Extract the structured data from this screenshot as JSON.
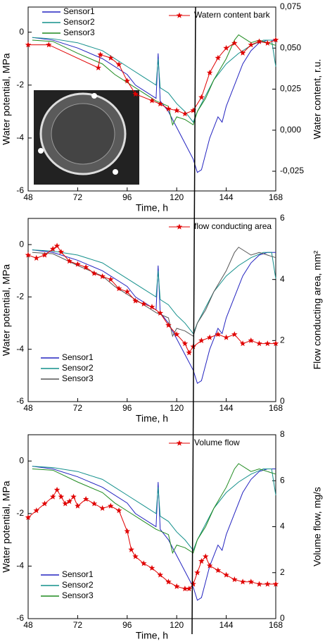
{
  "chart_data": [
    {
      "type": "line",
      "xlabel": "Time, h",
      "ylabel": "Water potential, MPa",
      "y2label": "Water content, r.u.",
      "xlim": [
        48,
        168
      ],
      "xticks": [
        48,
        72,
        96,
        120,
        144,
        168
      ],
      "ylim": [
        -6,
        0.95
      ],
      "yticks": [
        -6,
        -4,
        -2,
        0
      ],
      "y2lim": [
        -0.037,
        0.075
      ],
      "y2ticks": [
        {
          "value": -0.025,
          "label": "-0,025"
        },
        {
          "value": 0,
          "label": "0,000"
        },
        {
          "value": 0.025,
          "label": "0,025"
        },
        {
          "value": 0.05,
          "label": "0,050"
        },
        {
          "value": 0.075,
          "label": "0,075"
        }
      ],
      "legend": "upper left",
      "series": [
        {
          "name": "Sensor1",
          "color": "#2323c0",
          "x": [
            50,
            60,
            72,
            84,
            96,
            100,
            108,
            110,
            111,
            112,
            116,
            120,
            124,
            128,
            130,
            132,
            134,
            136,
            140,
            142,
            144,
            148,
            152,
            156,
            160,
            164,
            168
          ],
          "values": [
            -0.2,
            -0.3,
            -0.6,
            -1.0,
            -1.6,
            -2.0,
            -2.4,
            -2.5,
            -0.8,
            -2.6,
            -3.0,
            -3.6,
            -4.2,
            -4.8,
            -5.3,
            -5.2,
            -4.6,
            -4.0,
            -3.2,
            -3.4,
            -2.8,
            -2.0,
            -1.2,
            -0.7,
            -0.4,
            -0.3,
            -0.3
          ]
        },
        {
          "name": "Sensor2",
          "color": "#14908c",
          "x": [
            50,
            60,
            72,
            84,
            90,
            96,
            104,
            110,
            111,
            112,
            116,
            120,
            124,
            128,
            130,
            134,
            138,
            144,
            150,
            156,
            162,
            166,
            168
          ],
          "values": [
            -0.2,
            -0.25,
            -0.4,
            -0.7,
            -1.0,
            -1.3,
            -1.7,
            -2.0,
            -1.0,
            -2.1,
            -2.3,
            -2.7,
            -3.0,
            -3.4,
            -3.0,
            -2.4,
            -1.8,
            -1.2,
            -0.8,
            -0.5,
            -0.3,
            -0.3,
            -1.3
          ]
        },
        {
          "name": "Sensor3",
          "color": "#1f8a1f",
          "x": [
            50,
            60,
            72,
            84,
            90,
            96,
            104,
            110,
            116,
            118,
            120,
            124,
            128,
            130,
            134,
            138,
            144,
            148,
            150,
            156,
            160,
            164,
            168
          ],
          "values": [
            -0.3,
            -0.35,
            -0.8,
            -1.2,
            -1.6,
            -1.9,
            -2.3,
            -2.6,
            -2.8,
            -3.5,
            -3.2,
            -3.3,
            -3.5,
            -3.0,
            -2.5,
            -1.8,
            -1.0,
            -0.3,
            -0.1,
            -0.4,
            -0.3,
            -0.4,
            -0.5
          ]
        },
        {
          "name": "Watern content bark",
          "color": "#e00000",
          "axis": "y2",
          "marker": "star",
          "x": [
            48,
            58,
            82,
            83,
            88,
            92,
            96,
            100,
            108,
            112,
            116,
            120,
            124,
            128,
            132,
            136,
            140,
            144,
            148,
            152,
            156,
            160,
            164,
            168
          ],
          "values": [
            0.052,
            0.052,
            0.038,
            0.046,
            0.044,
            0.04,
            0.03,
            0.022,
            0.018,
            0.016,
            0.013,
            0.012,
            0.01,
            0.012,
            0.02,
            0.035,
            0.044,
            0.05,
            0.053,
            0.047,
            0.052,
            0.054,
            0.053,
            0.055
          ]
        }
      ]
    },
    {
      "type": "line",
      "xlabel": "Time, h",
      "ylabel": "Water potential, MPa",
      "y2label": "Flow conducting area, mm²",
      "xlim": [
        48,
        168
      ],
      "xticks": [
        48,
        72,
        96,
        120,
        144,
        168
      ],
      "ylim": [
        -6,
        1
      ],
      "yticks": [
        -6,
        -4,
        -2,
        0
      ],
      "y2lim": [
        0,
        6
      ],
      "y2ticks": [
        0,
        2,
        4,
        6
      ],
      "legend": "lower left",
      "series": [
        {
          "name": "Sensor1",
          "color": "#2323c0",
          "x": [
            50,
            60,
            72,
            84,
            96,
            100,
            108,
            110,
            111,
            112,
            116,
            120,
            124,
            128,
            130,
            132,
            134,
            136,
            140,
            142,
            144,
            148,
            152,
            156,
            160,
            164,
            168
          ],
          "values": [
            -0.2,
            -0.3,
            -0.6,
            -1.0,
            -1.6,
            -2.0,
            -2.4,
            -2.5,
            -0.8,
            -2.6,
            -3.0,
            -3.6,
            -4.2,
            -4.8,
            -5.3,
            -5.2,
            -4.6,
            -4.0,
            -3.2,
            -3.4,
            -2.8,
            -2.0,
            -1.2,
            -0.7,
            -0.4,
            -0.3,
            -0.3
          ]
        },
        {
          "name": "Sensor2",
          "color": "#14908c",
          "x": [
            50,
            60,
            72,
            84,
            90,
            96,
            104,
            110,
            111,
            112,
            116,
            120,
            124,
            128,
            130,
            134,
            138,
            144,
            150,
            156,
            162,
            166,
            168
          ],
          "values": [
            -0.2,
            -0.25,
            -0.4,
            -0.7,
            -1.0,
            -1.3,
            -1.7,
            -2.0,
            -1.0,
            -2.1,
            -2.3,
            -2.7,
            -3.0,
            -3.4,
            -3.0,
            -2.4,
            -1.8,
            -1.2,
            -0.8,
            -0.5,
            -0.3,
            -0.3,
            -1.3
          ]
        },
        {
          "name": "Sensor3",
          "color": "#555555",
          "x": [
            50,
            60,
            72,
            84,
            90,
            96,
            104,
            110,
            116,
            118,
            120,
            124,
            128,
            130,
            134,
            138,
            144,
            148,
            150,
            156,
            160,
            164,
            168
          ],
          "values": [
            -0.3,
            -0.35,
            -0.8,
            -1.2,
            -1.6,
            -1.9,
            -2.3,
            -2.6,
            -2.8,
            -3.5,
            -3.2,
            -3.3,
            -3.5,
            -3.0,
            -2.5,
            -1.8,
            -1.0,
            -0.3,
            -0.1,
            -0.4,
            -0.3,
            -0.4,
            -0.5
          ]
        },
        {
          "name": "flow conducting area",
          "color": "#e00000",
          "axis": "y2",
          "marker": "star",
          "x": [
            48,
            52,
            56,
            60,
            62,
            64,
            68,
            72,
            76,
            80,
            84,
            88,
            92,
            96,
            100,
            104,
            108,
            112,
            116,
            120,
            124,
            126,
            128,
            132,
            136,
            140,
            144,
            148,
            152,
            156,
            160,
            164,
            168
          ],
          "values": [
            4.8,
            4.7,
            4.8,
            5.0,
            5.1,
            4.9,
            4.6,
            4.5,
            4.4,
            4.2,
            4.1,
            4.0,
            3.7,
            3.6,
            3.3,
            3.2,
            3.1,
            2.9,
            2.5,
            2.2,
            1.9,
            1.6,
            1.8,
            2.0,
            2.1,
            2.2,
            2.1,
            2.2,
            1.9,
            2.0,
            1.9,
            1.9,
            1.9
          ]
        }
      ]
    },
    {
      "type": "line",
      "xlabel": "Time, h",
      "ylabel": "Water potential, MPa",
      "y2label": "Volume flow, mg/s",
      "xlim": [
        48,
        168
      ],
      "xticks": [
        48,
        72,
        96,
        120,
        144,
        168
      ],
      "ylim": [
        -6,
        1
      ],
      "yticks": [
        -6,
        -4,
        -2,
        0
      ],
      "y2lim": [
        0,
        8
      ],
      "y2ticks": [
        0,
        2,
        4,
        6,
        8
      ],
      "legend": "lower left",
      "series": [
        {
          "name": "Sensor1",
          "color": "#2323c0",
          "x": [
            50,
            60,
            72,
            84,
            96,
            100,
            108,
            110,
            111,
            112,
            116,
            120,
            124,
            128,
            130,
            132,
            134,
            136,
            140,
            142,
            144,
            148,
            152,
            156,
            160,
            164,
            168
          ],
          "values": [
            -0.2,
            -0.3,
            -0.6,
            -1.0,
            -1.6,
            -2.0,
            -2.4,
            -2.5,
            -0.8,
            -2.6,
            -3.0,
            -3.6,
            -4.2,
            -4.8,
            -5.3,
            -5.2,
            -4.6,
            -4.0,
            -3.2,
            -3.4,
            -2.8,
            -2.0,
            -1.2,
            -0.7,
            -0.4,
            -0.3,
            -0.3
          ]
        },
        {
          "name": "Sensor2",
          "color": "#14908c",
          "x": [
            50,
            60,
            72,
            84,
            90,
            96,
            104,
            110,
            111,
            112,
            116,
            120,
            124,
            128,
            130,
            134,
            138,
            144,
            150,
            156,
            162,
            166,
            168
          ],
          "values": [
            -0.2,
            -0.25,
            -0.4,
            -0.7,
            -1.0,
            -1.3,
            -1.7,
            -2.0,
            -1.0,
            -2.1,
            -2.3,
            -2.7,
            -3.0,
            -3.4,
            -3.0,
            -2.4,
            -1.8,
            -1.2,
            -0.8,
            -0.5,
            -0.3,
            -0.3,
            -1.3
          ]
        },
        {
          "name": "Sensor3",
          "color": "#1f8a1f",
          "x": [
            50,
            60,
            72,
            84,
            90,
            96,
            104,
            110,
            116,
            118,
            120,
            124,
            128,
            130,
            134,
            138,
            144,
            148,
            150,
            156,
            160,
            164,
            168
          ],
          "values": [
            -0.3,
            -0.35,
            -0.8,
            -1.2,
            -1.6,
            -1.9,
            -2.3,
            -2.6,
            -2.8,
            -3.5,
            -3.2,
            -3.3,
            -3.5,
            -3.0,
            -2.5,
            -1.8,
            -1.0,
            -0.3,
            -0.1,
            -0.4,
            -0.3,
            -0.4,
            -0.5
          ]
        },
        {
          "name": "Volume flow",
          "color": "#e00000",
          "axis": "y2",
          "marker": "star",
          "x": [
            48,
            52,
            56,
            60,
            62,
            64,
            66,
            68,
            70,
            72,
            76,
            80,
            84,
            88,
            92,
            96,
            98,
            100,
            104,
            108,
            112,
            116,
            120,
            124,
            126,
            128,
            130,
            132,
            134,
            136,
            140,
            144,
            148,
            152,
            156,
            160,
            164,
            168
          ],
          "values": [
            4.4,
            4.7,
            5.0,
            5.3,
            5.6,
            5.3,
            5.0,
            5.1,
            5.3,
            4.9,
            5.2,
            5.0,
            4.8,
            4.9,
            4.7,
            3.8,
            3.0,
            2.7,
            2.4,
            2.2,
            1.9,
            1.6,
            1.4,
            1.3,
            1.3,
            1.5,
            2.0,
            2.5,
            2.7,
            2.3,
            2.1,
            1.9,
            1.7,
            1.6,
            1.6,
            1.5,
            1.5,
            1.5
          ]
        }
      ]
    }
  ]
}
